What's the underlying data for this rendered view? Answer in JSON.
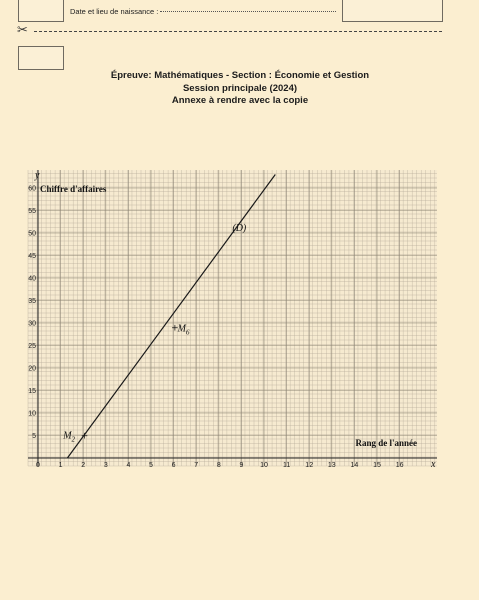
{
  "header": {
    "birth_label": "Date et lieu de naissance :"
  },
  "title": {
    "line1": "Épreuve: Mathématiques - Section : Économie et Gestion",
    "line2": "Session principale (2024)",
    "line3": "Annexe  à rendre avec la copie"
  },
  "chart_data": {
    "type": "line",
    "ylabel": "Chiffre d'affaires",
    "xlabel": "Rang de l'année",
    "y_axis_letter": "y",
    "x_axis_letter": "x",
    "xlim": [
      -0.5,
      17
    ],
    "ylim": [
      -0.5,
      61
    ],
    "x_ticks": [
      0,
      1,
      2,
      3,
      4,
      5,
      6,
      7,
      8,
      9,
      10,
      11,
      12,
      13,
      14,
      15,
      16
    ],
    "y_ticks": [
      5,
      10,
      15,
      20,
      25,
      30,
      35,
      40,
      45,
      50,
      55,
      60
    ],
    "grid": true,
    "line": {
      "name": "(D)",
      "points": [
        [
          1.3,
          0
        ],
        [
          10.5,
          63
        ]
      ]
    },
    "points": [
      {
        "name": "M",
        "sub": "2",
        "x": 2,
        "y": 5
      },
      {
        "name": "M",
        "sub": "6",
        "x": 6,
        "y": 29
      }
    ]
  }
}
